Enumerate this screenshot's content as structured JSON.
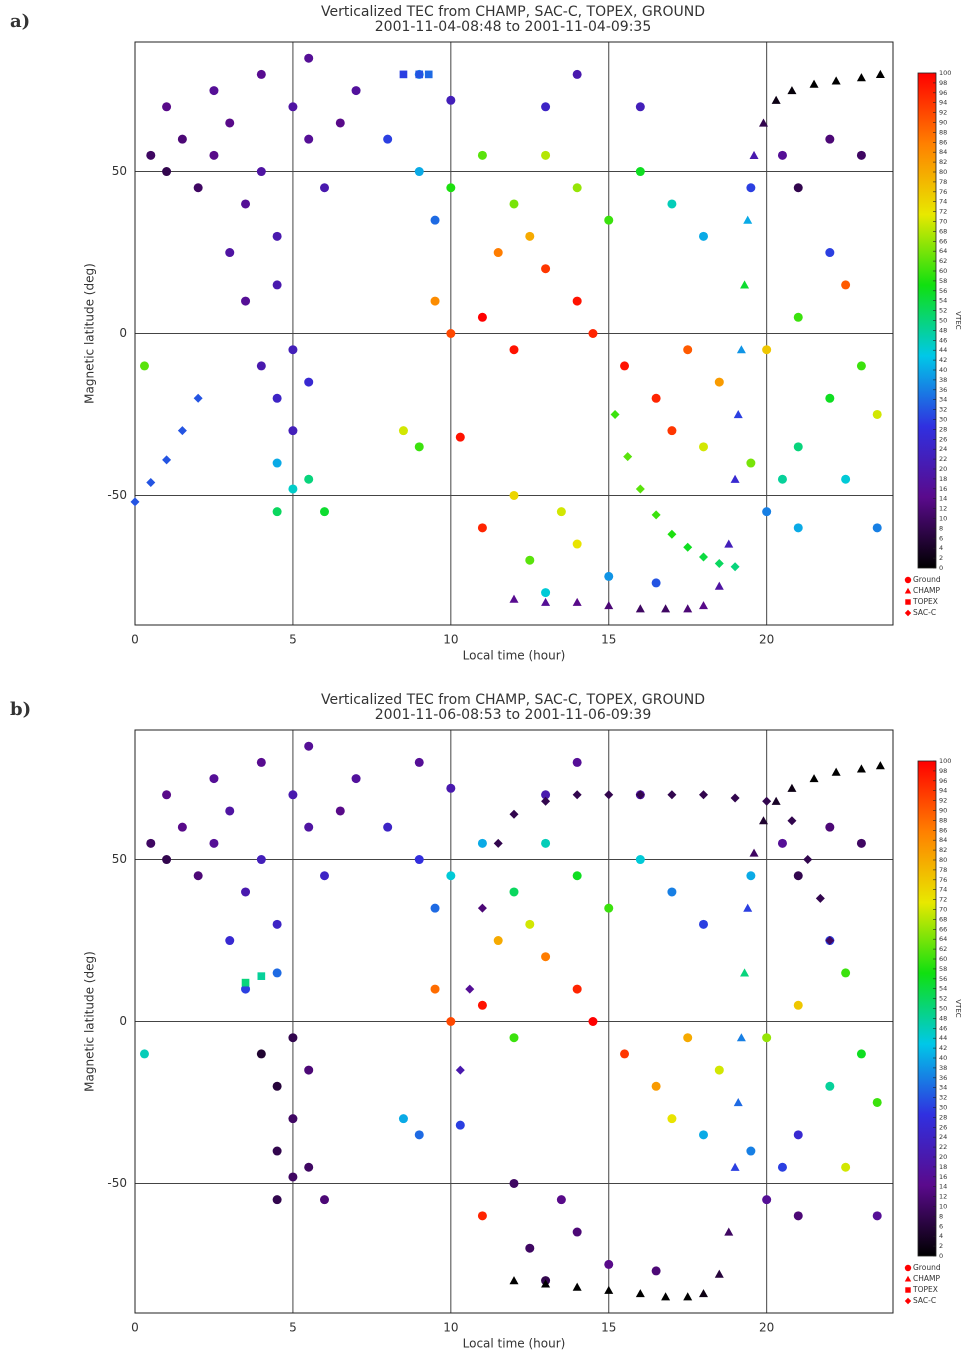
{
  "chart_data": [
    {
      "type": "scatter",
      "panel_label": "a)",
      "title": "Verticalized TEC from CHAMP, SAC-C, TOPEX, GROUND",
      "subtitle": "2001-11-04-08:48 to 2001-11-04-09:35",
      "x_label": "Local time (hour)",
      "y_label": "Magnetic latitude (deg)",
      "colorbar_label": "VTEC",
      "xlim": [
        0,
        24
      ],
      "ylim": [
        -90,
        90
      ],
      "xticks": [
        0,
        5,
        10,
        15,
        20
      ],
      "yticks": [
        -50,
        0,
        50
      ],
      "grid": true,
      "zlim": [
        0,
        100
      ],
      "zticks": [
        0,
        2,
        4,
        6,
        8,
        10,
        12,
        14,
        16,
        18,
        20,
        22,
        24,
        26,
        28,
        30,
        32,
        34,
        36,
        38,
        40,
        42,
        44,
        46,
        48,
        50,
        52,
        54,
        56,
        58,
        60,
        62,
        64,
        66,
        68,
        70,
        72,
        74,
        76,
        78,
        80,
        82,
        84,
        86,
        88,
        90,
        92,
        94,
        96,
        98,
        100
      ],
      "colormap": [
        "#000000",
        "#5a0a8c",
        "#3030e0",
        "#00c8e8",
        "#10e010",
        "#e8e800",
        "#ff8000",
        "#ff0000"
      ],
      "legend_color": "#ff0000",
      "series": [
        {
          "name": "Ground",
          "marker": "circle",
          "x": [
            0.5,
            1,
            1.5,
            2,
            2.5,
            3,
            3.5,
            1,
            4,
            4.5,
            3,
            2.5,
            5,
            5.5,
            6,
            6.5,
            4,
            5.5,
            7,
            3.5,
            4.5,
            5,
            4.5,
            5,
            4,
            5.5,
            4.5,
            5,
            4.5,
            6,
            5.5,
            8,
            9,
            9.5,
            10,
            11,
            12,
            13,
            14,
            15,
            16,
            17,
            18,
            12.5,
            11.5,
            13,
            14,
            11,
            10,
            9.5,
            12,
            14.5,
            15.5,
            16.5,
            17,
            18,
            19.5,
            20.5,
            21,
            22,
            22.5,
            23.5,
            23,
            17.5,
            18.5,
            20,
            21,
            8.5,
            9,
            10.3,
            12,
            13.5,
            14,
            12.5,
            13,
            15,
            16.5,
            20,
            21,
            23.5,
            22,
            22.5,
            19.5,
            20.5,
            22,
            23,
            21,
            16,
            13,
            10,
            9,
            14,
            11,
            0.3
          ],
          "y": [
            55,
            50,
            60,
            45,
            55,
            65,
            40,
            70,
            50,
            30,
            25,
            75,
            70,
            60,
            45,
            65,
            80,
            85,
            75,
            10,
            15,
            -5,
            -20,
            -30,
            -10,
            -15,
            -40,
            -48,
            -55,
            -55,
            -45,
            60,
            50,
            35,
            45,
            55,
            40,
            55,
            45,
            35,
            50,
            40,
            30,
            30,
            25,
            20,
            10,
            5,
            0,
            10,
            -5,
            0,
            -10,
            -20,
            -30,
            -35,
            -40,
            -45,
            -35,
            -20,
            -45,
            -25,
            -10,
            -5,
            -15,
            -5,
            5,
            -30,
            -35,
            -32,
            -50,
            -55,
            -65,
            -70,
            -80,
            -75,
            -77,
            -55,
            -60,
            -60,
            25,
            15,
            45,
            55,
            60,
            55,
            45,
            70,
            70,
            72,
            80,
            80,
            -60,
            -10
          ],
          "values": [
            10,
            8,
            12,
            10,
            14,
            14,
            16,
            14,
            18,
            20,
            18,
            16,
            18,
            16,
            20,
            14,
            15,
            16,
            17,
            16,
            20,
            22,
            24,
            22,
            20,
            26,
            40,
            45,
            52,
            55,
            50,
            30,
            40,
            34,
            58,
            62,
            64,
            68,
            66,
            60,
            56,
            46,
            40,
            80,
            86,
            94,
            98,
            100,
            92,
            84,
            98,
            96,
            98,
            96,
            94,
            70,
            64,
            48,
            50,
            56,
            44,
            70,
            60,
            90,
            82,
            76,
            60,
            70,
            60,
            98,
            74,
            70,
            72,
            62,
            44,
            38,
            32,
            36,
            40,
            36,
            30,
            90,
            30,
            16,
            12,
            10,
            8,
            22,
            24,
            22,
            38,
            20,
            96,
            62
          ]
        },
        {
          "name": "CHAMP",
          "marker": "triangle",
          "x": [
            12,
            13,
            14,
            15,
            16,
            16.8,
            17.5,
            18,
            18.5,
            18.8,
            19,
            19.1,
            19.2,
            19.3,
            19.4,
            19.6,
            19.9,
            20.3,
            20.8,
            21.5,
            22.2,
            23,
            23.6
          ],
          "y": [
            -82,
            -83,
            -83,
            -84,
            -85,
            -85,
            -85,
            -84,
            -78,
            -65,
            -45,
            -25,
            -5,
            15,
            35,
            55,
            65,
            72,
            75,
            77,
            78,
            79,
            80
          ],
          "values": [
            15,
            16,
            14,
            12,
            10,
            10,
            12,
            14,
            18,
            22,
            26,
            30,
            38,
            55,
            40,
            20,
            8,
            2,
            1,
            0,
            0,
            0,
            0
          ]
        },
        {
          "name": "TOPEX",
          "marker": "square",
          "x": [
            8.5,
            9,
            9.3
          ],
          "y": [
            80,
            80,
            80
          ],
          "values": [
            30,
            32,
            34
          ]
        },
        {
          "name": "SAC-C",
          "marker": "diamond",
          "x": [
            15.2,
            15.6,
            16,
            16.5,
            17,
            17.5,
            18,
            18.5,
            19,
            0,
            0.5,
            1,
            1.5,
            2
          ],
          "y": [
            -25,
            -38,
            -48,
            -56,
            -62,
            -66,
            -69,
            -71,
            -72,
            -52,
            -46,
            -39,
            -30,
            -20
          ],
          "values": [
            60,
            62,
            62,
            60,
            58,
            56,
            54,
            52,
            50,
            32,
            32,
            32,
            32,
            32
          ]
        }
      ]
    },
    {
      "type": "scatter",
      "panel_label": "b)",
      "title": "Verticalized TEC from CHAMP, SAC-C, TOPEX, GROUND",
      "subtitle": "2001-11-06-08:53 to 2001-11-06-09:39",
      "x_label": "Local time (hour)",
      "y_label": "Magnetic latitude (deg)",
      "colorbar_label": "VTEC",
      "xlim": [
        0,
        24
      ],
      "ylim": [
        -90,
        90
      ],
      "xticks": [
        0,
        5,
        10,
        15,
        20
      ],
      "yticks": [
        -50,
        0,
        50
      ],
      "grid": true,
      "zlim": [
        0,
        100
      ],
      "zticks": [
        0,
        2,
        4,
        6,
        8,
        10,
        12,
        14,
        16,
        18,
        20,
        22,
        24,
        26,
        28,
        30,
        32,
        34,
        36,
        38,
        40,
        42,
        44,
        46,
        48,
        50,
        52,
        54,
        56,
        58,
        60,
        62,
        64,
        66,
        68,
        70,
        72,
        74,
        76,
        78,
        80,
        82,
        84,
        86,
        88,
        90,
        92,
        94,
        96,
        98,
        100
      ],
      "colormap": [
        "#000000",
        "#5a0a8c",
        "#3030e0",
        "#00c8e8",
        "#10e010",
        "#e8e800",
        "#ff8000",
        "#ff0000"
      ],
      "legend_color": "#ff0000",
      "series": [
        {
          "name": "Ground",
          "marker": "circle",
          "x": [
            0.5,
            1,
            1.5,
            2,
            2.5,
            3,
            3.5,
            1,
            4,
            4.5,
            3,
            2.5,
            5,
            5.5,
            6,
            6.5,
            4,
            5.5,
            7,
            3.5,
            4.5,
            5,
            4.5,
            5,
            4,
            5.5,
            4.5,
            5,
            4.5,
            6,
            5.5,
            8,
            9,
            9.5,
            10,
            11,
            12,
            13,
            14,
            15,
            16,
            17,
            18,
            12.5,
            11.5,
            13,
            14,
            11,
            10,
            9.5,
            12,
            14.5,
            15.5,
            16.5,
            17,
            18,
            19.5,
            20.5,
            21,
            22,
            22.5,
            23.5,
            23,
            17.5,
            18.5,
            20,
            21,
            8.5,
            9,
            10.3,
            12,
            13.5,
            14,
            12.5,
            13,
            15,
            16.5,
            20,
            21,
            23.5,
            22,
            22.5,
            19.5,
            20.5,
            22,
            23,
            21,
            16,
            13,
            10,
            9,
            14,
            11,
            0.3
          ],
          "y": [
            55,
            50,
            60,
            45,
            55,
            65,
            40,
            70,
            50,
            30,
            25,
            75,
            70,
            60,
            45,
            65,
            80,
            85,
            75,
            10,
            15,
            -5,
            -20,
            -30,
            -10,
            -15,
            -40,
            -48,
            -55,
            -55,
            -45,
            60,
            50,
            35,
            45,
            55,
            40,
            55,
            45,
            35,
            50,
            40,
            30,
            30,
            25,
            20,
            10,
            5,
            0,
            10,
            -5,
            0,
            -10,
            -20,
            -30,
            -35,
            -40,
            -45,
            -35,
            -20,
            -45,
            -25,
            -10,
            -5,
            -15,
            -5,
            5,
            -30,
            -35,
            -32,
            -50,
            -55,
            -65,
            -70,
            -80,
            -75,
            -77,
            -55,
            -60,
            -60,
            25,
            15,
            45,
            55,
            60,
            55,
            45,
            70,
            70,
            72,
            80,
            80,
            -60,
            -10
          ],
          "values": [
            10,
            8,
            14,
            12,
            16,
            18,
            20,
            14,
            22,
            24,
            26,
            16,
            20,
            18,
            24,
            14,
            15,
            16,
            17,
            30,
            34,
            8,
            6,
            10,
            5,
            12,
            8,
            10,
            8,
            12,
            10,
            24,
            28,
            34,
            44,
            40,
            52,
            46,
            56,
            60,
            44,
            36,
            30,
            70,
            80,
            86,
            96,
            98,
            92,
            88,
            60,
            100,
            94,
            82,
            72,
            40,
            36,
            30,
            26,
            48,
            70,
            60,
            56,
            80,
            70,
            66,
            76,
            40,
            34,
            30,
            10,
            14,
            12,
            10,
            8,
            14,
            12,
            16,
            12,
            16,
            30,
            60,
            40,
            16,
            12,
            10,
            8,
            18,
            20,
            20,
            16,
            16,
            96,
            46
          ]
        },
        {
          "name": "CHAMP",
          "marker": "triangle",
          "x": [
            12,
            13,
            14,
            15,
            16,
            16.8,
            17.5,
            18,
            18.5,
            18.8,
            19,
            19.1,
            19.2,
            19.3,
            19.4,
            19.6,
            19.9,
            20.3,
            20.8,
            21.5,
            22.2,
            23,
            23.6
          ],
          "y": [
            -80,
            -81,
            -82,
            -83,
            -84,
            -85,
            -85,
            -84,
            -78,
            -65,
            -45,
            -25,
            -5,
            15,
            35,
            52,
            62,
            68,
            72,
            75,
            77,
            78,
            79
          ],
          "values": [
            0,
            0,
            0,
            0,
            0,
            0,
            0,
            2,
            6,
            10,
            30,
            34,
            36,
            50,
            30,
            10,
            5,
            4,
            2,
            0,
            0,
            0,
            0
          ]
        },
        {
          "name": "TOPEX",
          "marker": "square",
          "x": [
            3.5,
            4
          ],
          "y": [
            12,
            14
          ],
          "values": [
            50,
            48
          ]
        },
        {
          "name": "SAC-C",
          "marker": "diamond",
          "x": [
            10.3,
            10.6,
            11,
            11.5,
            12,
            13,
            14,
            15,
            16,
            17,
            18,
            19,
            20,
            20.8,
            21.3,
            21.7,
            22
          ],
          "y": [
            -15,
            10,
            35,
            55,
            64,
            68,
            70,
            70,
            70,
            70,
            70,
            69,
            68,
            62,
            50,
            38,
            25
          ],
          "values": [
            20,
            16,
            12,
            8,
            8,
            8,
            8,
            8,
            8,
            8,
            8,
            8,
            8,
            8,
            8,
            8,
            10
          ]
        }
      ]
    }
  ]
}
